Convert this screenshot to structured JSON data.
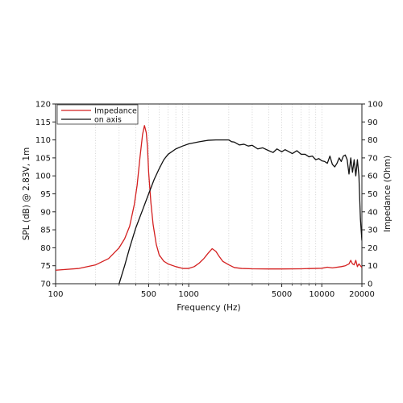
{
  "chart_data": {
    "type": "line",
    "xlabel": "Frequency (Hz)",
    "ylabel_left": "SPL (dB) @ 2.83V, 1m",
    "ylabel_right": "Impedance (Ohm)",
    "x_scale": "log",
    "xlim": [
      100,
      20000
    ],
    "ylim_left": [
      70,
      120
    ],
    "ylim_right": [
      0,
      100
    ],
    "x_ticks": [
      100,
      500,
      1000,
      5000,
      10000,
      20000
    ],
    "x_tick_labels": [
      "100",
      "500",
      "1000",
      "5000",
      "10000",
      "20000"
    ],
    "y_left_ticks": [
      70,
      75,
      80,
      85,
      90,
      95,
      100,
      105,
      110,
      115,
      120
    ],
    "y_left_tick_labels": [
      "70",
      "75",
      "80",
      "85",
      "90",
      "95",
      "100",
      "105",
      "110",
      "115",
      "120"
    ],
    "y_right_ticks": [
      0,
      10,
      20,
      30,
      40,
      50,
      60,
      70,
      80,
      90,
      100
    ],
    "y_right_tick_labels": [
      "0",
      "10",
      "20",
      "30",
      "40",
      "50",
      "60",
      "70",
      "80",
      "90",
      "100"
    ],
    "grid": "vertical-minor",
    "legend_position": "top-left",
    "series": [
      {
        "name": "Impedance",
        "axis": "right",
        "color": "#d42020",
        "x": [
          100,
          150,
          200,
          250,
          300,
          330,
          360,
          390,
          410,
          430,
          450,
          465,
          480,
          490,
          500,
          520,
          540,
          570,
          600,
          650,
          700,
          800,
          900,
          1000,
          1100,
          1200,
          1300,
          1400,
          1500,
          1600,
          1700,
          1800,
          2000,
          2200,
          2500,
          3000,
          4000,
          5000,
          7000,
          10000,
          11000,
          12000,
          14000,
          15000,
          16000,
          16500,
          17000,
          17500,
          18000,
          18500,
          19000,
          20000
        ],
        "y": [
          7.5,
          8.5,
          10.5,
          14,
          20,
          25,
          32,
          44,
          55,
          70,
          83,
          88,
          84,
          76,
          62,
          45,
          33,
          22,
          16,
          12.5,
          11,
          9.5,
          8.5,
          8.5,
          9.5,
          11.5,
          14,
          17,
          19.5,
          18,
          15,
          12.5,
          10.5,
          9,
          8.5,
          8.3,
          8.2,
          8.2,
          8.3,
          8.6,
          9.2,
          8.8,
          9.5,
          10,
          11,
          13,
          11,
          10.5,
          13,
          9.5,
          11,
          9
        ]
      },
      {
        "name": "on axis",
        "axis": "left",
        "color": "#111111",
        "x": [
          300,
          330,
          360,
          400,
          450,
          500,
          550,
          600,
          650,
          700,
          800,
          900,
          1000,
          1200,
          1400,
          1600,
          1800,
          2000,
          2100,
          2200,
          2400,
          2600,
          2800,
          3000,
          3300,
          3600,
          4000,
          4300,
          4600,
          5000,
          5300,
          5600,
          6000,
          6500,
          7000,
          7500,
          8000,
          8500,
          9000,
          9500,
          10000,
          10500,
          11000,
          11500,
          12000,
          12500,
          13000,
          13500,
          14000,
          14500,
          15000,
          15500,
          16000,
          16500,
          17000,
          17500,
          18000,
          18500,
          19000,
          19500,
          20000
        ],
        "y": [
          70,
          75,
          80,
          85.5,
          90.5,
          95,
          99,
          102,
          104.5,
          106,
          107.5,
          108.3,
          108.9,
          109.5,
          109.9,
          110,
          110,
          110,
          109.5,
          109.4,
          108.6,
          108.8,
          108.3,
          108.5,
          107.5,
          107.8,
          107,
          106.5,
          107.5,
          106.7,
          107.3,
          106.8,
          106.2,
          107,
          106,
          106,
          105.3,
          105.5,
          104.5,
          104.8,
          104.2,
          104,
          103.5,
          105.5,
          103.2,
          102.5,
          103.5,
          105,
          104,
          105.5,
          105.8,
          104.5,
          100.5,
          105,
          101,
          104.5,
          100,
          104.5,
          100,
          88,
          82
        ]
      }
    ]
  }
}
